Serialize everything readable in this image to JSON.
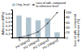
{
  "chart_data": {
    "type": "bar",
    "categories": [
      "0",
      "PU 50g/m2",
      "PU 100g/m2",
      "PU 150g/m2",
      "PU 200g/m2"
    ],
    "series": [
      {
        "name": "Orig. level",
        "type": "bar",
        "color": "#b0c4d0",
        "values": [
          0.55,
          0.5,
          0.43,
          0.48,
          0.13
        ]
      },
      {
        "name": "Loss of adh. compared\nto reference level",
        "type": "line",
        "axis": "y2",
        "color": "#444444",
        "marker": "square",
        "values": [
          0.0,
          8,
          22,
          55,
          98
        ]
      }
    ],
    "ylabel": "Adhesion (MPa)",
    "y2label": "Loss of adh. compared\nto reference (%)",
    "ylim": [
      0.0,
      0.7
    ],
    "yticks": [
      0.1,
      0.2,
      0.3,
      0.4,
      0.5,
      0.6
    ],
    "y2lim": [
      0,
      110
    ],
    "y2ticks": [
      0,
      20,
      40,
      60,
      80,
      100
    ],
    "legend": "upper left"
  }
}
